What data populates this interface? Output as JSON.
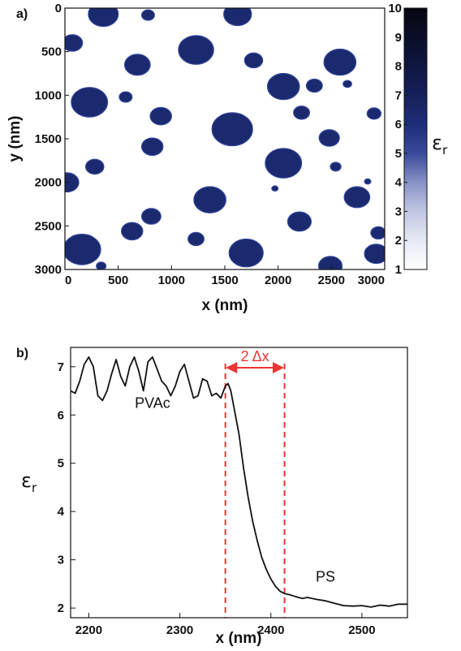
{
  "chart_data": [
    {
      "panel_label": "a)",
      "type": "heatmap",
      "xlabel": "x (nm)",
      "ylabel": "y (nm)",
      "xlim": [
        0,
        3000
      ],
      "ylim": [
        0,
        3000
      ],
      "y_inverted": true,
      "x_ticks": [
        "0",
        "500",
        "1000",
        "1500",
        "2000",
        "2500",
        "3000"
      ],
      "y_ticks": [
        "0",
        "500",
        "1000",
        "1500",
        "2000",
        "2500",
        "3000"
      ],
      "colorbar": {
        "label": "ε",
        "label_sub": "r",
        "min": 1,
        "max": 10,
        "ticks": [
          "10",
          "9",
          "8",
          "7",
          "6",
          "5",
          "4",
          "3",
          "2",
          "1"
        ],
        "colors": [
          "#ffffff",
          "#e6e9f4",
          "#c0c6e2",
          "#8892c6",
          "#3a4a9a",
          "#1f2d78",
          "#16205a",
          "#0f1640",
          "#0a0e28",
          "#050711"
        ]
      },
      "background_value": 1,
      "domains": [
        {
          "x": 360,
          "y": 70,
          "r": 140
        },
        {
          "x": 1620,
          "y": 70,
          "r": 130
        },
        {
          "x": 780,
          "y": 80,
          "r": 60
        },
        {
          "x": 70,
          "y": 400,
          "r": 95
        },
        {
          "x": 1230,
          "y": 480,
          "r": 165
        },
        {
          "x": 680,
          "y": 650,
          "r": 120
        },
        {
          "x": 1770,
          "y": 600,
          "r": 85
        },
        {
          "x": 2580,
          "y": 620,
          "r": 150
        },
        {
          "x": 2050,
          "y": 900,
          "r": 150
        },
        {
          "x": 2340,
          "y": 890,
          "r": 75
        },
        {
          "x": 2650,
          "y": 870,
          "r": 40
        },
        {
          "x": 230,
          "y": 1080,
          "r": 170
        },
        {
          "x": 570,
          "y": 1020,
          "r": 60
        },
        {
          "x": 900,
          "y": 1240,
          "r": 100
        },
        {
          "x": 2220,
          "y": 1200,
          "r": 75
        },
        {
          "x": 2900,
          "y": 1210,
          "r": 65
        },
        {
          "x": 1570,
          "y": 1390,
          "r": 190
        },
        {
          "x": 2480,
          "y": 1490,
          "r": 95
        },
        {
          "x": 820,
          "y": 1590,
          "r": 100
        },
        {
          "x": 2050,
          "y": 1780,
          "r": 170
        },
        {
          "x": 280,
          "y": 1820,
          "r": 85
        },
        {
          "x": 2540,
          "y": 1820,
          "r": 50
        },
        {
          "x": 20,
          "y": 2000,
          "r": 110
        },
        {
          "x": 1360,
          "y": 2200,
          "r": 150
        },
        {
          "x": 2740,
          "y": 2170,
          "r": 120
        },
        {
          "x": 1970,
          "y": 2070,
          "r": 30
        },
        {
          "x": 2840,
          "y": 1990,
          "r": 30
        },
        {
          "x": 810,
          "y": 2390,
          "r": 90
        },
        {
          "x": 2200,
          "y": 2450,
          "r": 110
        },
        {
          "x": 630,
          "y": 2560,
          "r": 100
        },
        {
          "x": 1230,
          "y": 2650,
          "r": 75
        },
        {
          "x": 2940,
          "y": 2580,
          "r": 70
        },
        {
          "x": 160,
          "y": 2770,
          "r": 175
        },
        {
          "x": 1700,
          "y": 2810,
          "r": 160
        },
        {
          "x": 2920,
          "y": 2820,
          "r": 110
        },
        {
          "x": 2490,
          "y": 2960,
          "r": 110
        },
        {
          "x": 340,
          "y": 2960,
          "r": 45
        }
      ]
    },
    {
      "panel_label": "b)",
      "type": "line",
      "xlabel": "x (nm)",
      "ylabel": "ε",
      "ylabel_sub": "r",
      "xlim": [
        2180,
        2550
      ],
      "ylim": [
        1.8,
        7.4
      ],
      "x_ticks": [
        2200,
        2300,
        2400,
        2500
      ],
      "y_ticks": [
        2,
        3,
        4,
        5,
        6,
        7
      ],
      "x": [
        2180,
        2185,
        2190,
        2195,
        2200,
        2205,
        2210,
        2215,
        2220,
        2225,
        2230,
        2235,
        2240,
        2245,
        2250,
        2255,
        2260,
        2265,
        2270,
        2275,
        2280,
        2285,
        2290,
        2295,
        2300,
        2305,
        2310,
        2315,
        2320,
        2325,
        2330,
        2335,
        2340,
        2345,
        2350,
        2353,
        2356,
        2360,
        2365,
        2370,
        2375,
        2380,
        2385,
        2390,
        2395,
        2400,
        2405,
        2410,
        2415,
        2420,
        2425,
        2430,
        2435,
        2440,
        2450,
        2460,
        2470,
        2480,
        2490,
        2500,
        2510,
        2520,
        2530,
        2540,
        2550
      ],
      "y": [
        6.5,
        6.45,
        6.7,
        7.05,
        7.2,
        7.0,
        6.4,
        6.3,
        6.5,
        6.85,
        7.15,
        6.8,
        6.6,
        7.0,
        7.2,
        6.9,
        6.5,
        7.1,
        7.2,
        6.95,
        6.7,
        6.6,
        6.4,
        6.6,
        6.9,
        7.05,
        6.7,
        6.35,
        6.4,
        6.75,
        6.7,
        6.4,
        6.45,
        6.35,
        6.6,
        6.65,
        6.5,
        6.1,
        5.6,
        4.9,
        4.3,
        3.8,
        3.4,
        3.05,
        2.8,
        2.6,
        2.45,
        2.35,
        2.3,
        2.28,
        2.25,
        2.22,
        2.2,
        2.22,
        2.18,
        2.15,
        2.1,
        2.05,
        2.04,
        2.05,
        2.02,
        2.06,
        2.04,
        2.08,
        2.08
      ],
      "vlines": [
        2350,
        2415
      ],
      "arrow_label": "2 Δx",
      "annotations": [
        {
          "text": "PVAc",
          "x": 2270,
          "y": 6.15
        },
        {
          "text": "PS",
          "x": 2460,
          "y": 2.55
        }
      ],
      "line_color": "#111111",
      "marker_color": "#ee3333"
    }
  ]
}
